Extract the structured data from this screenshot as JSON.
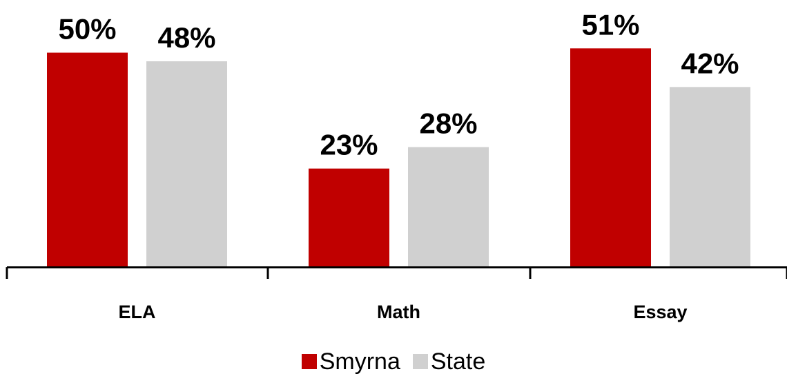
{
  "chart_data": {
    "type": "bar",
    "categories": [
      "ELA",
      "Math",
      "Essay"
    ],
    "series": [
      {
        "name": "Smyrna",
        "values": [
          50,
          23,
          51
        ],
        "labels": [
          "50%",
          "23%",
          "51%"
        ],
        "color": "#c00000"
      },
      {
        "name": "State",
        "values": [
          48,
          28,
          42
        ],
        "labels": [
          "48%",
          "28%",
          "42%"
        ],
        "color": "#d0d0d0"
      }
    ],
    "title": "",
    "xlabel": "",
    "ylabel": "",
    "ylim": [
      0,
      60
    ],
    "grid": false,
    "legend_position": "bottom"
  }
}
